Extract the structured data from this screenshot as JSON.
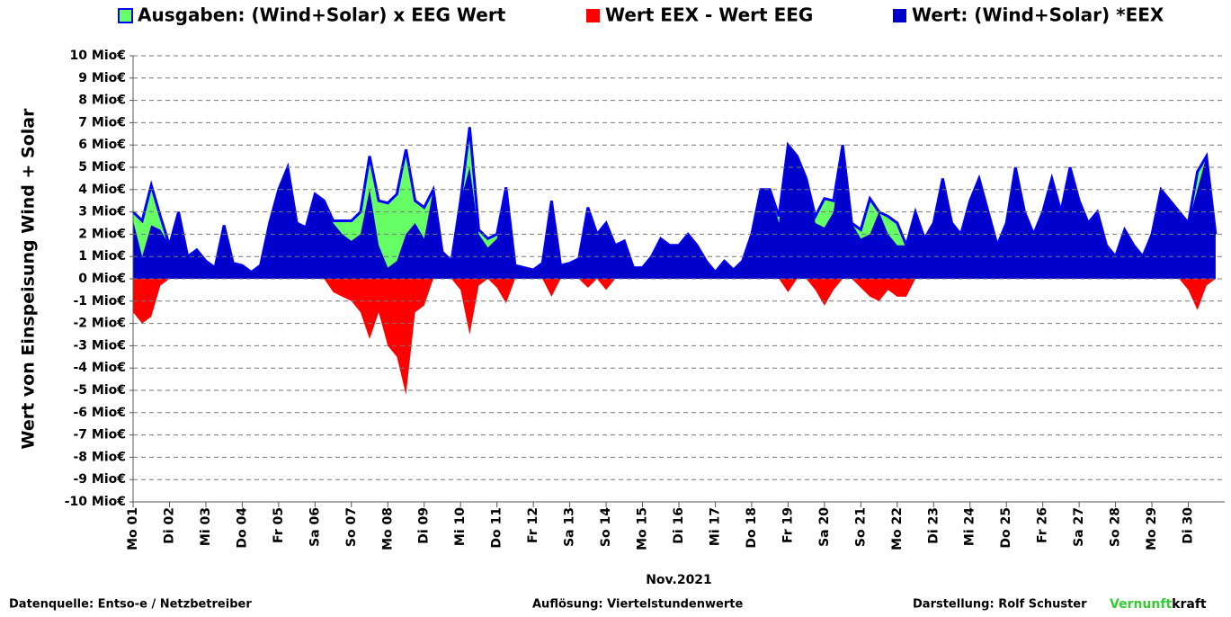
{
  "chart_data": {
    "type": "area",
    "y_axis_label": "Wert von Einspeisung Wind + Solar",
    "x_axis_label": "Nov.2021",
    "source": "Datenquelle:  Entso-e  / Netzbetreiber",
    "resolution": "Auflösung: Viertelstundenwerte",
    "credit": "Darstellung:  Rolf Schuster",
    "brand": [
      "Vernunft",
      "kraft"
    ],
    "brand_color": "#33cc33",
    "grid": true,
    "negative_tick_color": "#ff0000",
    "xlim": [
      0,
      30
    ],
    "ylim": [
      -10,
      10
    ],
    "yticks": [
      {
        "value": 10,
        "label": "10 Mio€"
      },
      {
        "value": 9,
        "label": "9 Mio€"
      },
      {
        "value": 8,
        "label": "8 Mio€"
      },
      {
        "value": 7,
        "label": "7 Mio€"
      },
      {
        "value": 6,
        "label": "6 Mio€"
      },
      {
        "value": 5,
        "label": "5 Mio€"
      },
      {
        "value": 4,
        "label": "4 Mio€"
      },
      {
        "value": 3,
        "label": "3 Mio€"
      },
      {
        "value": 2,
        "label": "2 Mio€"
      },
      {
        "value": 1,
        "label": "1 Mio€"
      },
      {
        "value": 0,
        "label": "0 Mio€"
      },
      {
        "value": -1,
        "label": "-1 Mio€"
      },
      {
        "value": -2,
        "label": "-2 Mio€"
      },
      {
        "value": -3,
        "label": "-3 Mio€"
      },
      {
        "value": -4,
        "label": "-4 Mio€"
      },
      {
        "value": -5,
        "label": "-5 Mio€"
      },
      {
        "value": -6,
        "label": "-6 Mio€"
      },
      {
        "value": -7,
        "label": "-7 Mio€"
      },
      {
        "value": -8,
        "label": "-8 Mio€"
      },
      {
        "value": -9,
        "label": "-9 Mio€"
      },
      {
        "value": -10,
        "label": "-10 Mio€"
      }
    ],
    "xticks": [
      {
        "value": 0,
        "label": "Mo 01"
      },
      {
        "value": 1,
        "label": "Di 02"
      },
      {
        "value": 2,
        "label": "Mi 03"
      },
      {
        "value": 3,
        "label": "Do 04"
      },
      {
        "value": 4,
        "label": "Fr 05"
      },
      {
        "value": 5,
        "label": "Sa 06"
      },
      {
        "value": 6,
        "label": "So 07"
      },
      {
        "value": 7,
        "label": "Mo 08"
      },
      {
        "value": 8,
        "label": "Di 09"
      },
      {
        "value": 9,
        "label": "Mi 10"
      },
      {
        "value": 10,
        "label": "Do 11"
      },
      {
        "value": 11,
        "label": "Fr 12"
      },
      {
        "value": 12,
        "label": "Sa 13"
      },
      {
        "value": 13,
        "label": "So 14"
      },
      {
        "value": 14,
        "label": "Mo 15"
      },
      {
        "value": 15,
        "label": "Di 16"
      },
      {
        "value": 16,
        "label": "Mi 17"
      },
      {
        "value": 17,
        "label": "Do 18"
      },
      {
        "value": 18,
        "label": "Fr 19"
      },
      {
        "value": 19,
        "label": "Sa 20"
      },
      {
        "value": 20,
        "label": "So 21"
      },
      {
        "value": 21,
        "label": "Mo 22"
      },
      {
        "value": 22,
        "label": "Di 23"
      },
      {
        "value": 23,
        "label": "Mi 24"
      },
      {
        "value": 24,
        "label": "Do 25"
      },
      {
        "value": 25,
        "label": "Fr 26"
      },
      {
        "value": 26,
        "label": "Sa 27"
      },
      {
        "value": 27,
        "label": "So 28"
      },
      {
        "value": 28,
        "label": "Mo 29"
      },
      {
        "value": 29,
        "label": "Di 30"
      }
    ],
    "x": [
      0,
      0.25,
      0.5,
      0.75,
      1,
      1.25,
      1.5,
      1.75,
      2,
      2.25,
      2.5,
      2.75,
      3,
      3.25,
      3.5,
      3.75,
      4,
      4.25,
      4.5,
      4.75,
      5,
      5.25,
      5.5,
      5.75,
      6,
      6.25,
      6.5,
      6.75,
      7,
      7.25,
      7.5,
      7.75,
      8,
      8.25,
      8.5,
      8.75,
      9,
      9.25,
      9.5,
      9.75,
      10,
      10.25,
      10.5,
      10.75,
      11,
      11.25,
      11.5,
      11.75,
      12,
      12.25,
      12.5,
      12.75,
      13,
      13.25,
      13.5,
      13.75,
      14,
      14.25,
      14.5,
      14.75,
      15,
      15.25,
      15.5,
      15.75,
      16,
      16.25,
      16.5,
      16.75,
      17,
      17.25,
      17.5,
      17.75,
      18,
      18.25,
      18.5,
      18.75,
      19,
      19.25,
      19.5,
      19.75,
      20,
      20.25,
      20.5,
      20.75,
      21,
      21.25,
      21.5,
      21.75,
      22,
      22.25,
      22.5,
      22.75,
      23,
      23.25,
      23.5,
      23.75,
      24,
      24.25,
      24.5,
      24.75,
      25,
      25.25,
      25.5,
      25.75,
      26,
      26.25,
      26.5,
      26.75,
      27,
      27.25,
      27.5,
      27.75,
      28,
      28.25,
      28.5,
      28.75,
      29,
      29.25,
      29.5,
      29.75
    ],
    "series": [
      {
        "name": "Ausgaben: (Wind+Solar) x EEG Wert",
        "color": "#66ff66",
        "edge_color": "#0000ff",
        "values": [
          3.0,
          2.6,
          4.2,
          2.8,
          1.5,
          3.0,
          1.0,
          1.3,
          0.8,
          0.5,
          2.4,
          0.7,
          0.6,
          0.3,
          0.6,
          2.5,
          4.0,
          5.0,
          2.5,
          2.3,
          3.8,
          3.5,
          2.6,
          2.6,
          2.6,
          3.0,
          5.5,
          3.5,
          3.4,
          3.8,
          5.8,
          3.5,
          3.2,
          4.0,
          1.2,
          0.8,
          3.5,
          6.8,
          2.2,
          1.8,
          2.0,
          4.1,
          0.6,
          0.5,
          0.4,
          0.7,
          3.5,
          0.6,
          0.7,
          0.9,
          3.2,
          2.0,
          2.5,
          1.5,
          1.7,
          0.5,
          0.5,
          1.0,
          1.8,
          1.5,
          1.5,
          2.0,
          1.5,
          0.8,
          0.3,
          0.8,
          0.4,
          0.8,
          2.0,
          4.0,
          4.0,
          2.8,
          6.0,
          5.5,
          4.5,
          2.8,
          3.6,
          3.5,
          6.0,
          2.5,
          2.2,
          3.6,
          3.0,
          2.8,
          2.5,
          1.5,
          3.0,
          1.8,
          2.5,
          4.5,
          2.5,
          2.0,
          3.5,
          4.5,
          3.0,
          1.5,
          2.5,
          5.0,
          3.0,
          2.0,
          3.0,
          4.5,
          3.0,
          5.0,
          3.5,
          2.5,
          3.0,
          1.5,
          1.0,
          2.2,
          1.5,
          1.0,
          2.0,
          4.0,
          3.5,
          3.0,
          2.5,
          4.8,
          5.5,
          2.0
        ]
      },
      {
        "name": "Wert EEX - Wert EEG",
        "color": "#ff0000",
        "values": [
          -1.5,
          -2.0,
          -1.7,
          -0.3,
          0,
          0,
          0,
          0,
          0,
          0,
          0,
          0,
          0,
          0,
          0,
          0,
          0,
          0,
          0,
          0,
          0,
          0,
          -0.6,
          -0.8,
          -1.0,
          -1.5,
          -2.7,
          -1.5,
          -3.0,
          -3.5,
          -5.2,
          -1.5,
          -1.2,
          0,
          0,
          0,
          -0.5,
          -2.5,
          -0.3,
          0,
          -0.4,
          -1.1,
          0,
          0,
          0,
          0,
          -0.8,
          0,
          0,
          0,
          -0.4,
          0,
          -0.5,
          0,
          0,
          0,
          0,
          0,
          0,
          0,
          0,
          0,
          0,
          0,
          0,
          0,
          0,
          0,
          0,
          0,
          0,
          0,
          -0.6,
          0,
          0,
          -0.5,
          -1.2,
          -0.5,
          0,
          0,
          -0.4,
          -0.8,
          -1.0,
          -0.5,
          -0.8,
          -0.8,
          0,
          0,
          0,
          0,
          0,
          0,
          0,
          0,
          0,
          0,
          0,
          0,
          0,
          0,
          0,
          0,
          0,
          0,
          0,
          0,
          0,
          0,
          0,
          0,
          0,
          0,
          0,
          0,
          0,
          0,
          -0.5,
          -1.4,
          -0.3,
          0
        ]
      },
      {
        "name": "Wert: (Wind+Solar) *EEX",
        "color": "#0000cc",
        "values": [
          2.6,
          1.0,
          2.4,
          2.2,
          1.5,
          3.0,
          1.0,
          1.3,
          0.8,
          0.5,
          2.4,
          0.7,
          0.6,
          0.3,
          0.6,
          2.5,
          4.0,
          5.0,
          2.5,
          2.3,
          3.8,
          3.5,
          2.5,
          2.0,
          1.7,
          2.0,
          4.0,
          1.5,
          0.5,
          0.8,
          2.0,
          2.5,
          1.8,
          4.0,
          1.2,
          0.8,
          3.5,
          5.0,
          2.0,
          1.4,
          1.8,
          3.8,
          0.6,
          0.5,
          0.4,
          0.7,
          3.5,
          0.6,
          0.7,
          0.9,
          3.0,
          2.0,
          2.5,
          1.5,
          1.7,
          0.5,
          0.5,
          1.0,
          1.8,
          1.5,
          1.5,
          2.0,
          1.5,
          0.8,
          0.3,
          0.8,
          0.4,
          0.8,
          2.0,
          4.0,
          4.0,
          2.5,
          6.0,
          5.5,
          4.5,
          2.5,
          2.3,
          3.0,
          6.0,
          2.5,
          1.8,
          2.0,
          3.0,
          2.0,
          1.5,
          1.5,
          3.0,
          1.8,
          2.5,
          4.5,
          2.5,
          2.0,
          3.5,
          4.5,
          3.0,
          1.5,
          2.5,
          5.0,
          3.0,
          2.0,
          3.0,
          4.5,
          3.0,
          5.0,
          3.5,
          2.5,
          3.0,
          1.5,
          1.0,
          2.2,
          1.5,
          1.0,
          2.0,
          4.0,
          3.5,
          3.0,
          2.5,
          4.0,
          5.5,
          2.0
        ]
      }
    ]
  }
}
